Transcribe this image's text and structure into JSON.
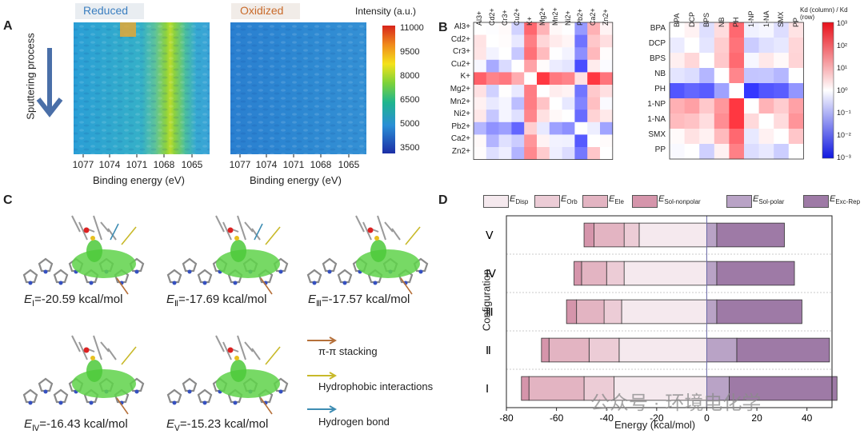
{
  "panels": {
    "a": "A",
    "b": "B",
    "c": "C",
    "d": "D"
  },
  "panel_a": {
    "tag_left": "Reduced",
    "tag_right": "Oxidized",
    "y_label": "Sputtering process",
    "x_title": "Binding energy (eV)",
    "x_ticks": [
      "1077",
      "1074",
      "1071",
      "1068",
      "1065"
    ],
    "colorbar_title": "Intensity (a.u.)",
    "colorbar_ticks": [
      "11000",
      "9500",
      "8000",
      "6500",
      "5000",
      "3500"
    ],
    "colors": {
      "tag_left": "#3a7ec0",
      "tag_right": "#c96a2a",
      "arrow": "#4a6fa8"
    }
  },
  "panel_b": {
    "cations": [
      "Al3+",
      "Cd2+",
      "Cr3+",
      "Cu2+",
      "K+",
      "Mg2+",
      "Mn2+",
      "Ni2+",
      "Pb2+",
      "Ca2+",
      "Zn2+"
    ],
    "organics": [
      "BPA",
      "DCP",
      "BPS",
      "NB",
      "PH",
      "1-NP",
      "1-NA",
      "SMX",
      "PP"
    ],
    "colorbar_title": "Kd (column) / Kd (row)",
    "colorbar_ticks": [
      "10³",
      "10²",
      "10¹",
      "10⁰",
      "10⁻¹",
      "10⁻²",
      "10⁻³"
    ]
  },
  "panel_c": {
    "energies": [
      {
        "symbol": "E",
        "sub": "Ⅰ",
        "value": "=-20.59 kcal/mol"
      },
      {
        "symbol": "E",
        "sub": "Ⅱ",
        "value": "=-17.69 kcal/mol"
      },
      {
        "symbol": "E",
        "sub": "Ⅲ",
        "value": "=-17.57 kcal/mol"
      },
      {
        "symbol": "E",
        "sub": "Ⅳ",
        "value": "=-16.43 kcal/mol"
      },
      {
        "symbol": "E",
        "sub": "Ⅴ",
        "value": "=-15.23 kcal/mol"
      }
    ],
    "legend": [
      {
        "label": "π-π stacking",
        "color": "#b5703a"
      },
      {
        "label": "Hydrophobic interactions",
        "color": "#c8b92a"
      },
      {
        "label": "Hydrogen bond",
        "color": "#3e8db3"
      }
    ]
  },
  "chart_data": {
    "type": "bar",
    "orientation": "horizontal-stacked",
    "xlabel": "Energy (kcal/mol)",
    "ylabel": "Configuration",
    "xlim": [
      -80,
      50
    ],
    "x_ticks": [
      -80,
      -60,
      -40,
      -20,
      0,
      20,
      40
    ],
    "categories": [
      "V",
      "IV",
      "III",
      "II",
      "I"
    ],
    "category_labels": [
      "Ⅴ",
      "Ⅳ",
      "Ⅲ",
      "Ⅱ",
      "Ⅰ"
    ],
    "legend": [
      {
        "main": "E",
        "sub": "Disp",
        "color": "#f5e9ee"
      },
      {
        "main": "E",
        "sub": "Orb",
        "color": "#ecccd6"
      },
      {
        "main": "E",
        "sub": "Ele",
        "color": "#e3b4c2"
      },
      {
        "main": "E",
        "sub": "Sol-nonpolar",
        "color": "#d595ab"
      },
      {
        "main": "E",
        "sub": "Sol-polar",
        "color": "#b9a3c6"
      },
      {
        "main": "E",
        "sub": "Exc-Rep",
        "color": "#9e7aa6"
      }
    ],
    "negative_series": [
      {
        "name": "Disp",
        "values": [
          -27,
          -33,
          -34,
          -35,
          -37
        ]
      },
      {
        "name": "Orb",
        "values": [
          -6,
          -7,
          -7,
          -12,
          -12
        ]
      },
      {
        "name": "Ele",
        "values": [
          -12,
          -10,
          -11,
          -16,
          -22
        ]
      },
      {
        "name": "Sol-nonpolar",
        "values": [
          -4,
          -3,
          -4,
          -3,
          -3
        ]
      }
    ],
    "positive_series": [
      {
        "name": "Sol-polar",
        "values": [
          4,
          4,
          4,
          12,
          9
        ]
      },
      {
        "name": "Exc-Rep",
        "values": [
          27,
          31,
          34,
          37,
          43
        ]
      }
    ]
  },
  "watermark": "公众号 · 环境电化学"
}
